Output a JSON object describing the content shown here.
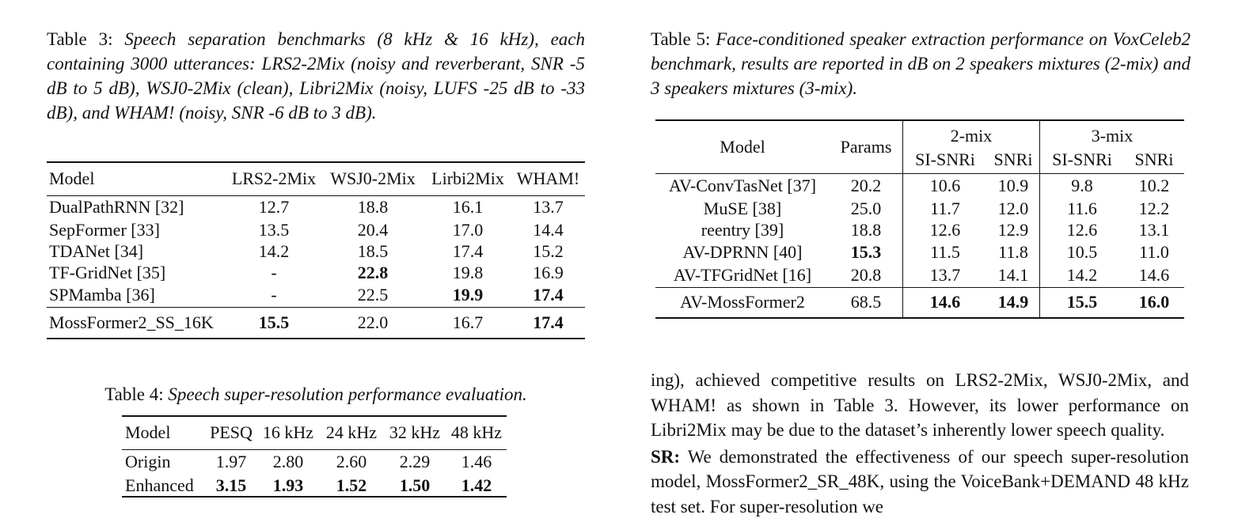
{
  "table3": {
    "label": "Table 3:",
    "caption": "Speech separation benchmarks (8 kHz & 16 kHz), each containing 3000 utterances: LRS2-2Mix (noisy and reverberant, SNR -5 dB to 5 dB), WSJ0-2Mix (clean), Libri2Mix (noisy, LUFS -25 dB to -33 dB), and WHAM! (noisy, SNR -6 dB to 3 dB).",
    "headers": [
      "Model",
      "LRS2-2Mix",
      "WSJ0-2Mix",
      "Lirbi2Mix",
      "WHAM!"
    ],
    "rows": [
      {
        "cells": [
          "DualPathRNN [32]",
          "12.7",
          "18.8",
          "16.1",
          "13.7"
        ],
        "bold": []
      },
      {
        "cells": [
          "SepFormer [33]",
          "13.5",
          "20.4",
          "17.0",
          "14.4"
        ],
        "bold": []
      },
      {
        "cells": [
          "TDANet [34]",
          "14.2",
          "18.5",
          "17.4",
          "15.2"
        ],
        "bold": []
      },
      {
        "cells": [
          "TF-GridNet [35]",
          "-",
          "22.8",
          "19.8",
          "16.9"
        ],
        "bold": [
          2
        ]
      },
      {
        "cells": [
          "SPMamba [36]",
          "-",
          "22.5",
          "19.9",
          "17.4"
        ],
        "bold": [
          3,
          4
        ]
      }
    ],
    "final_row": {
      "cells": [
        "MossFormer2_SS_16K",
        "15.5",
        "22.0",
        "16.7",
        "17.4"
      ],
      "bold": [
        1,
        4
      ]
    }
  },
  "table4": {
    "label": "Table 4:",
    "caption": "Speech super-resolution performance evaluation.",
    "headers": [
      "Model",
      "PESQ",
      "16 kHz",
      "24 kHz",
      "32 kHz",
      "48 kHz"
    ],
    "rows": [
      {
        "cells": [
          "Origin",
          "1.97",
          "2.80",
          "2.60",
          "2.29",
          "1.46"
        ],
        "bold": []
      },
      {
        "cells": [
          "Enhanced",
          "3.15",
          "1.93",
          "1.52",
          "1.50",
          "1.42"
        ],
        "bold": [
          1,
          2,
          3,
          4,
          5
        ]
      }
    ]
  },
  "table5": {
    "label": "Table 5:",
    "caption": "Face-conditioned speaker extraction performance on VoxCeleb2 benchmark, results are reported in dB on 2 speakers mixtures (2-mix) and 3 speakers mixtures (3-mix).",
    "header_model": "Model",
    "header_params": "Params",
    "group1": "2-mix",
    "group2": "3-mix",
    "sub_headers": [
      "SI-SNRi",
      "SNRi",
      "SI-SNRi",
      "SNRi"
    ],
    "rows": [
      {
        "cells": [
          "AV-ConvTasNet [37]",
          "20.2",
          "10.6",
          "10.9",
          "9.8",
          "10.2"
        ],
        "bold": []
      },
      {
        "cells": [
          "MuSE [38]",
          "25.0",
          "11.7",
          "12.0",
          "11.6",
          "12.2"
        ],
        "bold": []
      },
      {
        "cells": [
          "reentry [39]",
          "18.8",
          "12.6",
          "12.9",
          "12.6",
          "13.1"
        ],
        "bold": []
      },
      {
        "cells": [
          "AV-DPRNN [40]",
          "15.3",
          "11.5",
          "11.8",
          "10.5",
          "11.0"
        ],
        "bold": [
          1
        ]
      },
      {
        "cells": [
          "AV-TFGridNet [16]",
          "20.8",
          "13.7",
          "14.1",
          "14.2",
          "14.6"
        ],
        "bold": []
      }
    ],
    "final_row": {
      "cells": [
        "AV-MossFormer2",
        "68.5",
        "14.6",
        "14.9",
        "15.5",
        "16.0"
      ],
      "bold": [
        2,
        3,
        4,
        5
      ]
    }
  },
  "body": {
    "para1": "ing), achieved competitive results on LRS2-2Mix, WSJ0-2Mix, and WHAM! as shown in Table 3. However, its lower performance on Libri2Mix may be due to the dataset’s inherently lower speech quality.",
    "sr_label": "SR:",
    "para2": "We demonstrated the effectiveness of our speech super-resolution model, MossFormer2_SR_48K, using the VoiceBank+DEMAND 48 kHz test set. For super-resolution we"
  }
}
